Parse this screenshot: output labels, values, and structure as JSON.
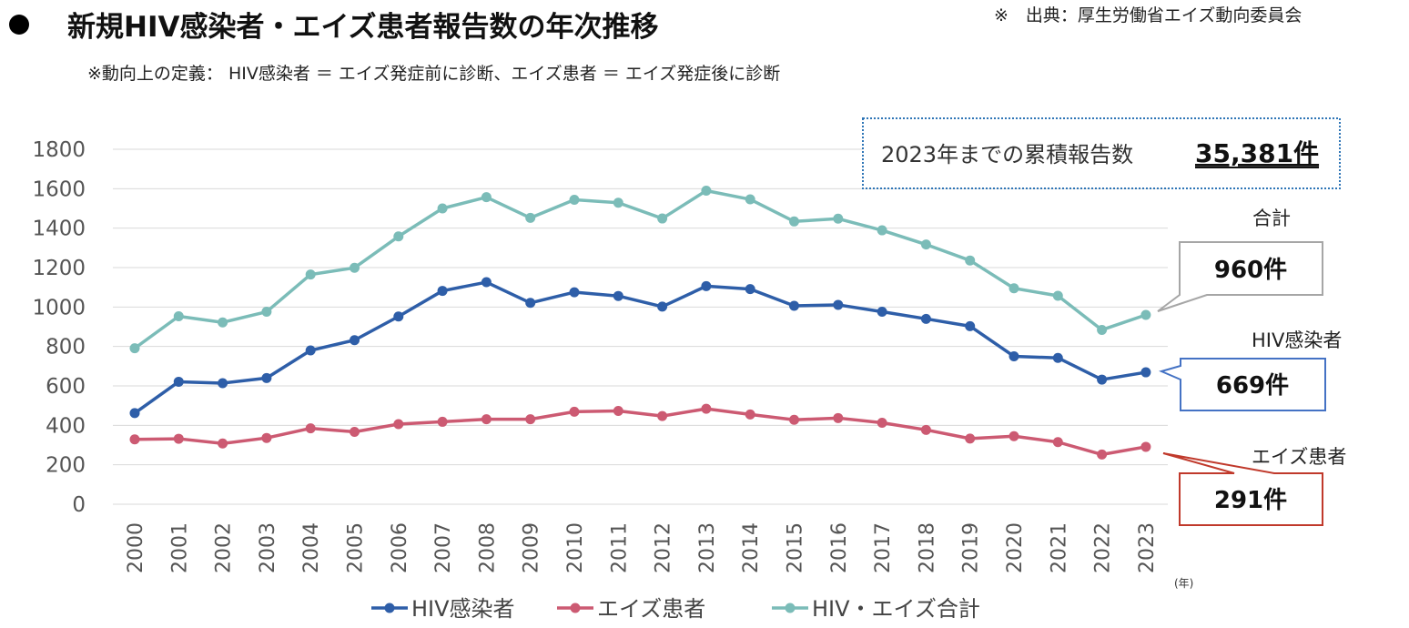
{
  "header": {
    "title": "新規HIV感染者・エイズ患者報告数の年次推移",
    "source": "※　出典：厚生労働省エイズ動向委員会",
    "note": "※動向上の定義： HIV感染者 ＝ エイズ発症前に診断、エイズ患者 ＝ エイズ発症後に診断"
  },
  "cumulative": {
    "label": "2023年までの累積報告数",
    "value": "35,381件"
  },
  "callouts": {
    "total": {
      "label": "合計",
      "value": "960件"
    },
    "hiv": {
      "label": "HIV感染者",
      "value": "669件"
    },
    "aids": {
      "label": "エイズ患者",
      "value": "291件"
    }
  },
  "colors": {
    "hiv": "#2e5ea8",
    "aids": "#cc5a72",
    "total": "#7bbcb8",
    "grid": "#d9d9d9",
    "box_total": "#a6a6a6",
    "box_hiv": "#4472c4",
    "box_aids": "#c0392b",
    "cumulative_border": "#2e75b6"
  },
  "chart_data": {
    "type": "line",
    "x": [
      "2000",
      "2001",
      "2002",
      "2003",
      "2004",
      "2005",
      "2006",
      "2007",
      "2008",
      "2009",
      "2010",
      "2011",
      "2012",
      "2013",
      "2014",
      "2015",
      "2016",
      "2017",
      "2018",
      "2019",
      "2020",
      "2021",
      "2022",
      "2023"
    ],
    "xunit": "(年)",
    "ylim": [
      0,
      1800
    ],
    "yticks": [
      0,
      200,
      400,
      600,
      800,
      1000,
      1200,
      1400,
      1600,
      1800
    ],
    "grid": true,
    "legend_position": "bottom",
    "series": [
      {
        "key": "hiv",
        "name": "HIV感染者",
        "values": [
          462,
          621,
          614,
          640,
          780,
          832,
          952,
          1082,
          1126,
          1021,
          1075,
          1056,
          1002,
          1106,
          1091,
          1006,
          1011,
          976,
          940,
          903,
          750,
          742,
          632,
          669
        ]
      },
      {
        "key": "aids",
        "name": "エイズ患者",
        "values": [
          329,
          332,
          308,
          336,
          385,
          367,
          406,
          418,
          431,
          431,
          469,
          473,
          447,
          484,
          455,
          428,
          437,
          413,
          377,
          333,
          345,
          315,
          252,
          291
        ]
      },
      {
        "key": "total",
        "name": "HIV・エイズ合計",
        "values": [
          791,
          953,
          922,
          976,
          1165,
          1199,
          1358,
          1500,
          1557,
          1452,
          1544,
          1529,
          1449,
          1590,
          1546,
          1434,
          1448,
          1389,
          1317,
          1236,
          1095,
          1057,
          884,
          960
        ]
      }
    ]
  }
}
